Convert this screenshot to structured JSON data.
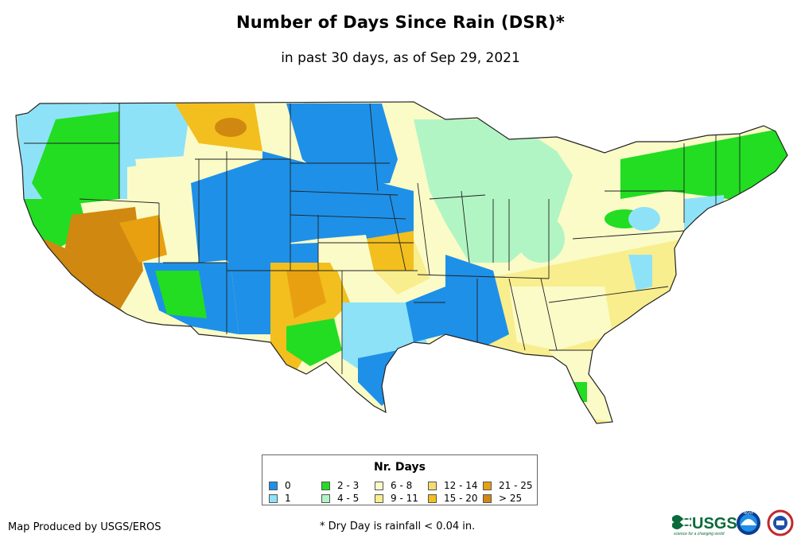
{
  "title": "Number of Days Since Rain (DSR)*",
  "subtitle": "in past 30 days, as of Sep 29, 2021",
  "legend": {
    "title": "Nr. Days",
    "items": [
      {
        "label": "0",
        "color": "#1e90e8"
      },
      {
        "label": "1",
        "color": "#8ee2f8"
      },
      {
        "label": "2 - 3",
        "color": "#22dd22"
      },
      {
        "label": "4 - 5",
        "color": "#b2f5c4"
      },
      {
        "label": "6 - 8",
        "color": "#fbfbc8"
      },
      {
        "label": "9 - 11",
        "color": "#f8ee8e"
      },
      {
        "label": "12 - 14",
        "color": "#f4dc6e"
      },
      {
        "label": "15 - 20",
        "color": "#f2bf1e"
      },
      {
        "label": "21 - 25",
        "color": "#e8a010"
      },
      {
        "label": "> 25",
        "color": "#d08810"
      }
    ]
  },
  "credit": "Map Produced by USGS/EROS",
  "footnote": "* Dry Day is rainfall < 0.04 in.",
  "logos": {
    "usgs": {
      "text": "USGS",
      "tagline": "science for a changing world",
      "icon": "usgs-wave-icon"
    },
    "noaa": {
      "text": "NOAA",
      "icon": "noaa-seal-icon"
    },
    "nws": {
      "icon": "national-weather-service-seal-icon"
    }
  }
}
